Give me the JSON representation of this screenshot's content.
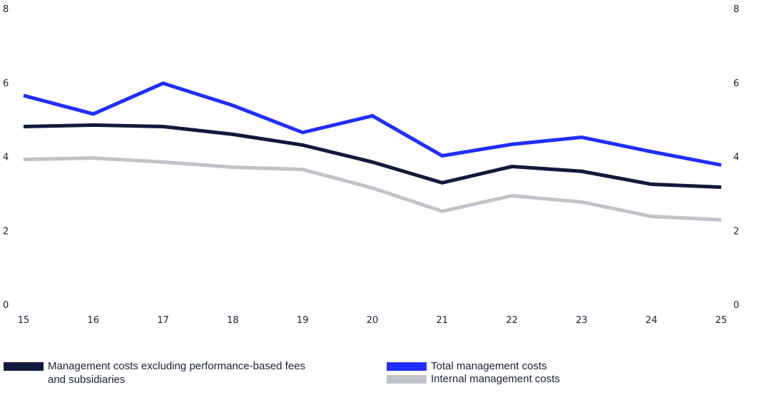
{
  "chart_data": {
    "type": "line",
    "x": [
      15,
      16,
      17,
      18,
      19,
      20,
      21,
      22,
      23,
      24,
      25
    ],
    "ylim": [
      0,
      8
    ],
    "yticks": [
      0,
      2,
      4,
      6,
      8
    ],
    "secondary_yticks": [
      0,
      2,
      4,
      6,
      8
    ],
    "grid": false,
    "legend_placement": "bottom",
    "series": [
      {
        "name": "Management costs excluding performance-based fees and subsidiaries",
        "color": "#111a3a",
        "values": [
          4.81,
          4.85,
          4.81,
          4.6,
          4.31,
          3.85,
          3.29,
          3.73,
          3.6,
          3.25,
          3.17
        ]
      },
      {
        "name": "Total management costs",
        "color": "#1f2eff",
        "values": [
          5.65,
          5.15,
          5.98,
          5.38,
          4.65,
          5.1,
          4.02,
          4.33,
          4.52,
          4.13,
          3.77
        ]
      },
      {
        "name": "Internal management costs",
        "color": "#c0c3c8",
        "values": [
          3.92,
          3.96,
          3.85,
          3.71,
          3.65,
          3.15,
          2.52,
          2.94,
          2.77,
          2.38,
          2.29
        ]
      }
    ]
  }
}
